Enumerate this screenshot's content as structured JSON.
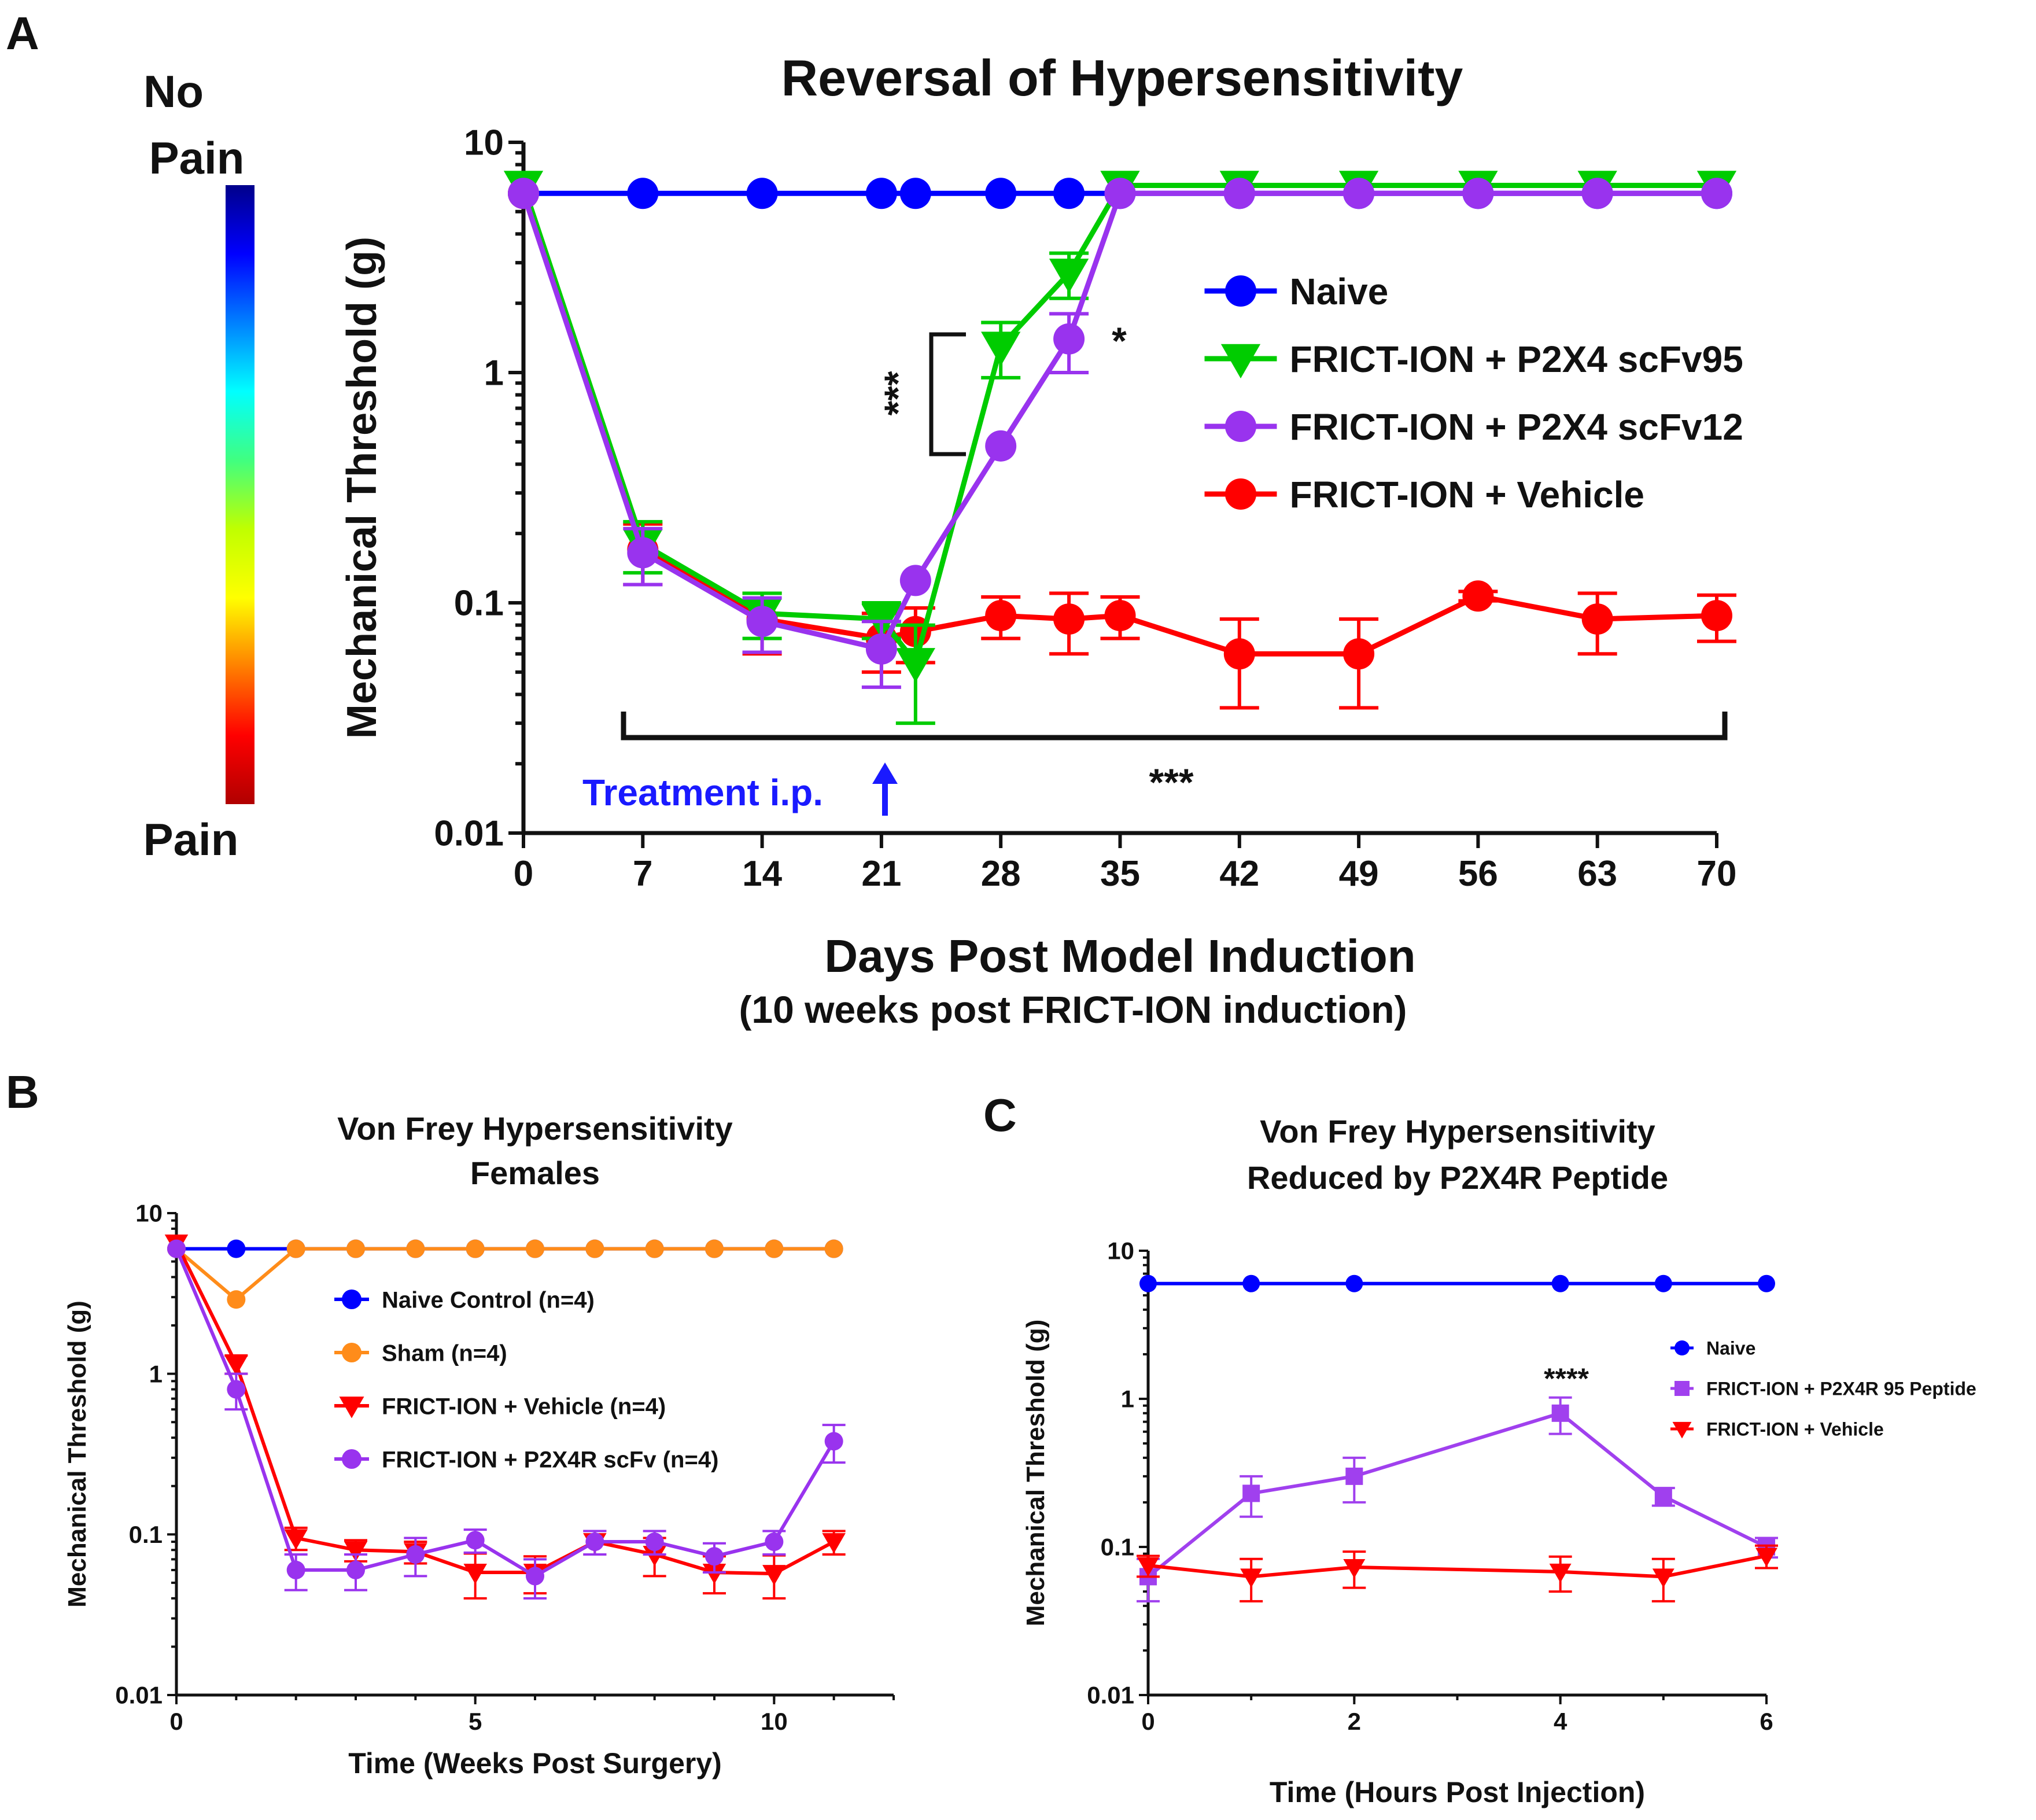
{
  "figure": {
    "colorbar": {
      "top_label": "No\nPain",
      "bottom_label": "Pain",
      "stops": [
        "#00008b",
        "#0000ff",
        "#0080ff",
        "#00ffff",
        "#40ff80",
        "#c0ff00",
        "#ffff00",
        "#ff8000",
        "#ff0000",
        "#b00000"
      ]
    }
  },
  "chart_data": [
    {
      "panel": "A",
      "type": "line",
      "title": "Reversal of Hypersensitivity",
      "xlabel": "Days Post Model Induction",
      "xlabel2": "(10 weeks post FRICT-ION induction)",
      "ylabel": "Mechanical Threshold (g)",
      "yscale": "log",
      "ylim": [
        0.01,
        10
      ],
      "xlim": [
        0,
        70
      ],
      "xticks": [
        0,
        7,
        14,
        21,
        28,
        35,
        42,
        49,
        56,
        63,
        70
      ],
      "yticks": [
        0.01,
        0.1,
        1,
        10
      ],
      "ytick_labels": [
        "0.01",
        "0.1",
        "1",
        "10"
      ],
      "legend_position": "middle-right",
      "series": [
        {
          "name": "Naive",
          "color": "#0000ff",
          "marker": "circle",
          "x": [
            0,
            7,
            14,
            21,
            23,
            28,
            32,
            35,
            42,
            49,
            56,
            63,
            70
          ],
          "values": [
            6,
            6,
            6,
            6,
            6,
            6,
            6,
            6,
            6,
            6,
            6,
            6,
            6
          ],
          "err": [
            0,
            0,
            0,
            0,
            0,
            0,
            0,
            0,
            0,
            0,
            0,
            0,
            0
          ]
        },
        {
          "name": "FRICT-ION + Vehicle",
          "color": "#ff0000",
          "marker": "circle",
          "x": [
            0,
            7,
            14,
            21,
            23,
            28,
            32,
            35,
            42,
            49,
            56,
            63,
            70
          ],
          "values": [
            6,
            0.17,
            0.085,
            0.07,
            0.075,
            0.088,
            0.085,
            0.088,
            0.06,
            0.06,
            0.107,
            0.085,
            0.088
          ],
          "err": [
            0,
            0.05,
            0.025,
            0.02,
            0.02,
            0.018,
            0.025,
            0.018,
            0.025,
            0.025,
            0.005,
            0.025,
            0.02
          ]
        },
        {
          "name": "FRICT-ION + P2X4 scFv95",
          "color": "#00cc00",
          "marker": "triangle-down",
          "x": [
            0,
            7,
            14,
            21,
            23,
            28,
            32,
            35,
            42,
            49,
            56,
            63,
            70
          ],
          "values": [
            6.5,
            0.18,
            0.09,
            0.085,
            0.055,
            1.3,
            2.7,
            6.5,
            6.5,
            6.5,
            6.5,
            6.5,
            6.5
          ],
          "err": [
            0,
            0.045,
            0.02,
            0.015,
            0.025,
            0.35,
            0.6,
            0,
            0,
            0,
            0,
            0,
            0
          ]
        },
        {
          "name": "FRICT-ION + P2X4 scFv12",
          "color": "#9933ee",
          "marker": "circle",
          "x": [
            0,
            7,
            14,
            21,
            23,
            28,
            32,
            35,
            42,
            49,
            56,
            63,
            70
          ],
          "values": [
            6,
            0.165,
            0.083,
            0.063,
            0.125,
            0.48,
            1.4,
            6,
            6,
            6,
            6,
            6,
            6
          ],
          "err": [
            0,
            0.045,
            0.022,
            0.02,
            0,
            0,
            0.4,
            0,
            0,
            0,
            0,
            0,
            0
          ]
        }
      ],
      "annotations": {
        "sig1": "***",
        "sig2": "*",
        "sig3": "***",
        "treatment": "Treatment i.p."
      }
    },
    {
      "panel": "B",
      "type": "line",
      "title": "Von Frey Hypersensitivity",
      "title2": "Females",
      "xlabel": "Time (Weeks Post Surgery)",
      "ylabel": "Mechanical Threshold (g)",
      "yscale": "log",
      "ylim": [
        0.01,
        10
      ],
      "xlim": [
        0,
        12
      ],
      "xticks": [
        0,
        5,
        10
      ],
      "yticks": [
        0.01,
        0.1,
        1,
        10
      ],
      "ytick_labels": [
        "0.01",
        "0.1",
        "1",
        "10"
      ],
      "legend_position": "top-right",
      "series": [
        {
          "name": "Naive Control (n=4)",
          "color": "#0000ff",
          "marker": "circle",
          "x": [
            0,
            1,
            2,
            3,
            4,
            5,
            6,
            7,
            8,
            9,
            10,
            11
          ],
          "values": [
            6,
            6,
            6,
            6,
            6,
            6,
            6,
            6,
            6,
            6,
            6,
            6
          ],
          "err": [
            0,
            0,
            0,
            0,
            0,
            0,
            0,
            0,
            0,
            0,
            0,
            0
          ]
        },
        {
          "name": "Sham (n=4)",
          "color": "#ff8c1a",
          "marker": "circle",
          "x": [
            0,
            1,
            2,
            3,
            4,
            5,
            6,
            7,
            8,
            9,
            10,
            11
          ],
          "values": [
            6,
            2.9,
            6,
            6,
            6,
            6,
            6,
            6,
            6,
            6,
            6,
            6
          ],
          "err": [
            0,
            0,
            0,
            0,
            0,
            0,
            0,
            0,
            0,
            0,
            0,
            0
          ]
        },
        {
          "name": "FRICT-ION + Vehicle (n=4)",
          "color": "#ff0000",
          "marker": "triangle-down",
          "x": [
            0,
            1,
            2,
            3,
            4,
            5,
            6,
            7,
            8,
            9,
            10,
            11
          ],
          "values": [
            6.5,
            1.15,
            0.095,
            0.08,
            0.078,
            0.058,
            0.058,
            0.09,
            0.075,
            0.058,
            0.057,
            0.09
          ],
          "err": [
            0,
            0.15,
            0.015,
            0.012,
            0.012,
            0.018,
            0.015,
            0.015,
            0.02,
            0.015,
            0.017,
            0.015
          ]
        },
        {
          "name": "FRICT-ION + P2X4R scFv (n=4)",
          "color": "#9933ee",
          "marker": "circle",
          "x": [
            0,
            1,
            2,
            3,
            4,
            5,
            6,
            7,
            8,
            9,
            10,
            11
          ],
          "values": [
            6,
            0.8,
            0.06,
            0.06,
            0.075,
            0.092,
            0.055,
            0.09,
            0.09,
            0.073,
            0.09,
            0.38
          ],
          "err": [
            0,
            0.2,
            0.015,
            0.015,
            0.02,
            0.015,
            0.015,
            0.015,
            0.015,
            0.015,
            0.015,
            0.1
          ]
        }
      ]
    },
    {
      "panel": "C",
      "type": "line",
      "title": "Von Frey Hypersensitivity",
      "title2": "Reduced by P2X4R Peptide",
      "xlabel": "Time (Hours Post Injection)",
      "ylabel": "Mechanical Threshold (g)",
      "yscale": "log",
      "ylim": [
        0.01,
        10
      ],
      "xlim": [
        0,
        6
      ],
      "xticks": [
        0,
        2,
        4,
        6
      ],
      "yticks": [
        0.01,
        0.1,
        1,
        10
      ],
      "ytick_labels": [
        "0.01",
        "0.1",
        "1",
        "10"
      ],
      "legend_position": "right",
      "series": [
        {
          "name": "Naive",
          "color": "#0000ff",
          "marker": "circle",
          "x": [
            0,
            1,
            2,
            4,
            5,
            6
          ],
          "values": [
            6,
            6,
            6,
            6,
            6,
            6
          ],
          "err": [
            0,
            0,
            0,
            0,
            0,
            0
          ]
        },
        {
          "name": "FRICT-ION + P2X4R 95 Peptide",
          "color": "#a040ee",
          "marker": "square",
          "x": [
            0,
            1,
            2,
            4,
            5,
            6
          ],
          "values": [
            0.063,
            0.23,
            0.3,
            0.8,
            0.22,
            0.1
          ],
          "err": [
            0.02,
            0.07,
            0.1,
            0.22,
            0.03,
            0.015
          ]
        },
        {
          "name": "FRICT-ION + Vehicle",
          "color": "#ff0000",
          "marker": "triangle-down",
          "x": [
            0,
            1,
            2,
            4,
            5,
            6
          ],
          "values": [
            0.075,
            0.063,
            0.073,
            0.068,
            0.063,
            0.087
          ],
          "err": [
            0.012,
            0.02,
            0.02,
            0.018,
            0.02,
            0.015
          ]
        }
      ],
      "annotations": {
        "sig": "****"
      }
    }
  ]
}
